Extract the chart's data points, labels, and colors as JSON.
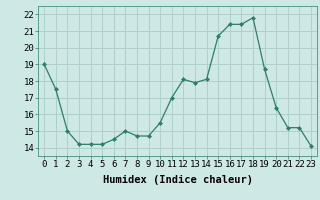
{
  "x": [
    0,
    1,
    2,
    3,
    4,
    5,
    6,
    7,
    8,
    9,
    10,
    11,
    12,
    13,
    14,
    15,
    16,
    17,
    18,
    19,
    20,
    21,
    22,
    23
  ],
  "y": [
    19,
    17.5,
    15,
    14.2,
    14.2,
    14.2,
    14.5,
    15,
    14.7,
    14.7,
    15.5,
    17,
    18.1,
    17.9,
    18.1,
    20.7,
    21.4,
    21.4,
    21.8,
    18.7,
    16.4,
    15.2,
    15.2,
    14.1
  ],
  "line_color": "#2e7d6e",
  "marker": "D",
  "marker_size": 2.0,
  "bg_color": "#cde8e5",
  "grid_color": "#aecfcc",
  "xlabel": "Humidex (Indice chaleur)",
  "xlim": [
    -0.5,
    23.5
  ],
  "ylim": [
    13.5,
    22.5
  ],
  "yticks": [
    14,
    15,
    16,
    17,
    18,
    19,
    20,
    21,
    22
  ],
  "xticks": [
    0,
    1,
    2,
    3,
    4,
    5,
    6,
    7,
    8,
    9,
    10,
    11,
    12,
    13,
    14,
    15,
    16,
    17,
    18,
    19,
    20,
    21,
    22,
    23
  ],
  "xtick_labels": [
    "0",
    "1",
    "2",
    "3",
    "4",
    "5",
    "6",
    "7",
    "8",
    "9",
    "10",
    "11",
    "12",
    "13",
    "14",
    "15",
    "16",
    "17",
    "18",
    "19",
    "20",
    "21",
    "22",
    "23"
  ],
  "label_fontsize": 7.5,
  "tick_fontsize": 6.5
}
